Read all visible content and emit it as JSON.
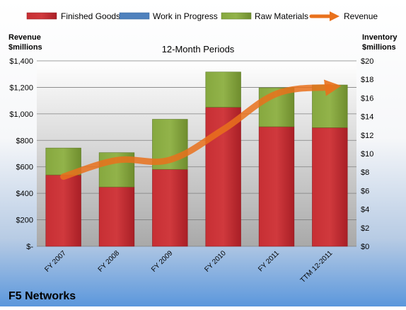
{
  "colors": {
    "finished_goods": "#c0272d",
    "work_in_progress": "#4f81bd",
    "raw_materials": "#7a9a35",
    "revenue": "#e9711c"
  },
  "legend": [
    {
      "label": "Finished Goods",
      "color_key": "finished_goods",
      "icon": "bar-swatch"
    },
    {
      "label": "Work in Progress",
      "color_key": "work_in_progress",
      "icon": "bar-swatch"
    },
    {
      "label": "Raw Materials",
      "color_key": "raw_materials",
      "icon": "bar-swatch"
    },
    {
      "label": "Revenue",
      "color_key": "revenue",
      "icon": "arrow-line"
    }
  ],
  "chart_data": {
    "type": "bar",
    "stacked": true,
    "title": "12-Month Periods",
    "company": "F5 Networks",
    "left_axis_title": [
      "Revenue",
      "$millions"
    ],
    "right_axis_title": [
      "Inventory",
      "$millions"
    ],
    "categories": [
      "FY 2007",
      "FY 2008",
      "FY 2009",
      "FY 2010",
      "FY 2011",
      "TTM 12-2011"
    ],
    "left_axis": {
      "min": 0,
      "max": 1400,
      "step": 200,
      "tick_labels": [
        "$-",
        "$200",
        "$400",
        "$600",
        "$800",
        "$1,000",
        "$1,200",
        "$1,400"
      ]
    },
    "right_axis": {
      "min": 0,
      "max": 20,
      "step": 2,
      "tick_labels": [
        "$0",
        "$2",
        "$4",
        "$6",
        "$8",
        "$10",
        "$12",
        "$14",
        "$16",
        "$18",
        "$20"
      ]
    },
    "series": [
      {
        "name": "Finished Goods",
        "axis": "right",
        "type": "bar",
        "color_key": "finished_goods",
        "values": [
          7.7,
          6.4,
          8.3,
          15.0,
          12.9,
          12.8
        ]
      },
      {
        "name": "Work in Progress",
        "axis": "right",
        "type": "bar",
        "color_key": "work_in_progress",
        "values": [
          0,
          0,
          0,
          0,
          0,
          0
        ]
      },
      {
        "name": "Raw Materials",
        "axis": "right",
        "type": "bar",
        "color_key": "raw_materials",
        "values": [
          2.9,
          3.7,
          5.4,
          3.8,
          4.2,
          4.6
        ]
      },
      {
        "name": "Revenue",
        "axis": "left",
        "type": "line",
        "color_key": "revenue",
        "values": [
          526,
          650,
          653,
          882,
          1152,
          1201
        ]
      }
    ],
    "grid": true,
    "legend_position": "top"
  }
}
